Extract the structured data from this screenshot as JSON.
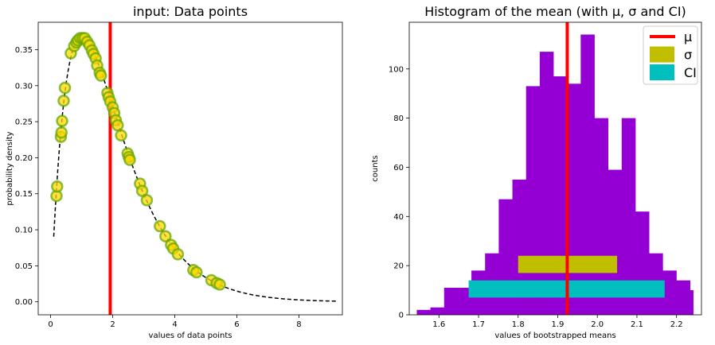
{
  "chart_data": [
    {
      "type": "scatter",
      "title": "input: Data points",
      "xlabel": "values of data points",
      "ylabel": "probability density",
      "xlim": [
        -0.4,
        9.4
      ],
      "ylim": [
        -0.018,
        0.388
      ],
      "x_ticks": [
        0,
        2,
        4,
        6,
        8
      ],
      "x_tick_labels": [
        "0",
        "2",
        "4",
        "6",
        "8"
      ],
      "y_ticks": [
        0.0,
        0.05,
        0.1,
        0.15,
        0.2,
        0.25,
        0.3,
        0.35
      ],
      "y_tick_labels": [
        "0.00",
        "0.05",
        "0.10",
        "0.15",
        "0.20",
        "0.25",
        "0.30",
        "0.35"
      ],
      "grid": false,
      "mean_line": {
        "x": 1.92,
        "color": "#ff0000"
      },
      "curve": {
        "style": "dashed",
        "color": "#000000",
        "x_start": 0.1,
        "x_end": 9.2
      },
      "points": [
        {
          "x": 0.19,
          "y": 0.147
        },
        {
          "x": 0.21,
          "y": 0.16
        },
        {
          "x": 0.33,
          "y": 0.229
        },
        {
          "x": 0.35,
          "y": 0.235
        },
        {
          "x": 0.37,
          "y": 0.251
        },
        {
          "x": 0.42,
          "y": 0.279
        },
        {
          "x": 0.46,
          "y": 0.297
        },
        {
          "x": 0.65,
          "y": 0.345
        },
        {
          "x": 0.76,
          "y": 0.355
        },
        {
          "x": 0.83,
          "y": 0.36
        },
        {
          "x": 0.88,
          "y": 0.363
        },
        {
          "x": 0.95,
          "y": 0.366
        },
        {
          "x": 1.03,
          "y": 0.366
        },
        {
          "x": 1.1,
          "y": 0.366
        },
        {
          "x": 1.18,
          "y": 0.361
        },
        {
          "x": 1.25,
          "y": 0.356
        },
        {
          "x": 1.33,
          "y": 0.349
        },
        {
          "x": 1.38,
          "y": 0.344
        },
        {
          "x": 1.45,
          "y": 0.338
        },
        {
          "x": 1.5,
          "y": 0.328
        },
        {
          "x": 1.58,
          "y": 0.318
        },
        {
          "x": 1.62,
          "y": 0.314
        },
        {
          "x": 1.83,
          "y": 0.29
        },
        {
          "x": 1.87,
          "y": 0.284
        },
        {
          "x": 1.92,
          "y": 0.278
        },
        {
          "x": 2.0,
          "y": 0.27
        },
        {
          "x": 2.05,
          "y": 0.262
        },
        {
          "x": 2.1,
          "y": 0.252
        },
        {
          "x": 2.16,
          "y": 0.245
        },
        {
          "x": 2.27,
          "y": 0.231
        },
        {
          "x": 2.48,
          "y": 0.206
        },
        {
          "x": 2.52,
          "y": 0.201
        },
        {
          "x": 2.55,
          "y": 0.197
        },
        {
          "x": 2.88,
          "y": 0.164
        },
        {
          "x": 2.95,
          "y": 0.154
        },
        {
          "x": 3.1,
          "y": 0.141
        },
        {
          "x": 3.52,
          "y": 0.105
        },
        {
          "x": 3.7,
          "y": 0.091
        },
        {
          "x": 3.88,
          "y": 0.079
        },
        {
          "x": 3.95,
          "y": 0.074
        },
        {
          "x": 4.1,
          "y": 0.066
        },
        {
          "x": 4.6,
          "y": 0.044
        },
        {
          "x": 4.7,
          "y": 0.041
        },
        {
          "x": 5.18,
          "y": 0.03
        },
        {
          "x": 5.35,
          "y": 0.026
        },
        {
          "x": 5.45,
          "y": 0.024
        }
      ]
    },
    {
      "type": "bar",
      "title": "Histogram of the mean (with μ, σ and CI)",
      "xlabel": "values of bootstrapped means",
      "ylabel": "counts",
      "xlim": [
        1.525,
        2.263
      ],
      "ylim": [
        0,
        119
      ],
      "x_ticks": [
        1.6,
        1.7,
        1.8,
        1.9,
        2.0,
        2.1,
        2.2
      ],
      "x_tick_labels": [
        "1.6",
        "1.7",
        "1.8",
        "1.9",
        "2.0",
        "2.1",
        "2.2"
      ],
      "y_ticks": [
        0,
        20,
        40,
        60,
        80,
        100
      ],
      "y_tick_labels": [
        "0",
        "20",
        "40",
        "60",
        "80",
        "100"
      ],
      "grid": false,
      "bar_color": "#9400d3",
      "bins": [
        {
          "x0": 1.544,
          "x1": 1.5785,
          "count": 2
        },
        {
          "x0": 1.5785,
          "x1": 1.613,
          "count": 3
        },
        {
          "x0": 1.613,
          "x1": 1.6475,
          "count": 11
        },
        {
          "x0": 1.6475,
          "x1": 1.682,
          "count": 11
        },
        {
          "x0": 1.682,
          "x1": 1.7165,
          "count": 18
        },
        {
          "x0": 1.7165,
          "x1": 1.751,
          "count": 25
        },
        {
          "x0": 1.751,
          "x1": 1.7855,
          "count": 47
        },
        {
          "x0": 1.7855,
          "x1": 1.82,
          "count": 55
        },
        {
          "x0": 1.82,
          "x1": 1.8545,
          "count": 93
        },
        {
          "x0": 1.8545,
          "x1": 1.889,
          "count": 107
        },
        {
          "x0": 1.889,
          "x1": 1.9235,
          "count": 97
        },
        {
          "x0": 1.9235,
          "x1": 1.958,
          "count": 94
        },
        {
          "x0": 1.958,
          "x1": 1.9925,
          "count": 114
        },
        {
          "x0": 1.9925,
          "x1": 2.027,
          "count": 80
        },
        {
          "x0": 2.027,
          "x1": 2.0615,
          "count": 59
        },
        {
          "x0": 2.0615,
          "x1": 2.096,
          "count": 80
        },
        {
          "x0": 2.096,
          "x1": 2.1305,
          "count": 42
        },
        {
          "x0": 2.1305,
          "x1": 2.165,
          "count": 25
        },
        {
          "x0": 2.165,
          "x1": 2.1995,
          "count": 18
        },
        {
          "x0": 2.1995,
          "x1": 2.234,
          "count": 14
        },
        {
          "x0": 2.234,
          "x1": 2.242,
          "count": 10
        }
      ],
      "mu": {
        "x": 1.924,
        "color": "#ff0000"
      },
      "sigma": {
        "x0": 1.8,
        "x1": 2.05,
        "y0": 17,
        "y1": 24,
        "color": "#bfbf00"
      },
      "ci": {
        "x0": 1.675,
        "x1": 2.17,
        "y0": 7,
        "y1": 14,
        "color": "#00bfbf"
      },
      "legend": {
        "position": "top-right",
        "entries": [
          {
            "label": "μ",
            "color": "#ff0000",
            "kind": "line"
          },
          {
            "label": "σ",
            "color": "#bfbf00",
            "kind": "patch"
          },
          {
            "label": "CI",
            "color": "#00bfbf",
            "kind": "patch"
          }
        ]
      }
    }
  ]
}
